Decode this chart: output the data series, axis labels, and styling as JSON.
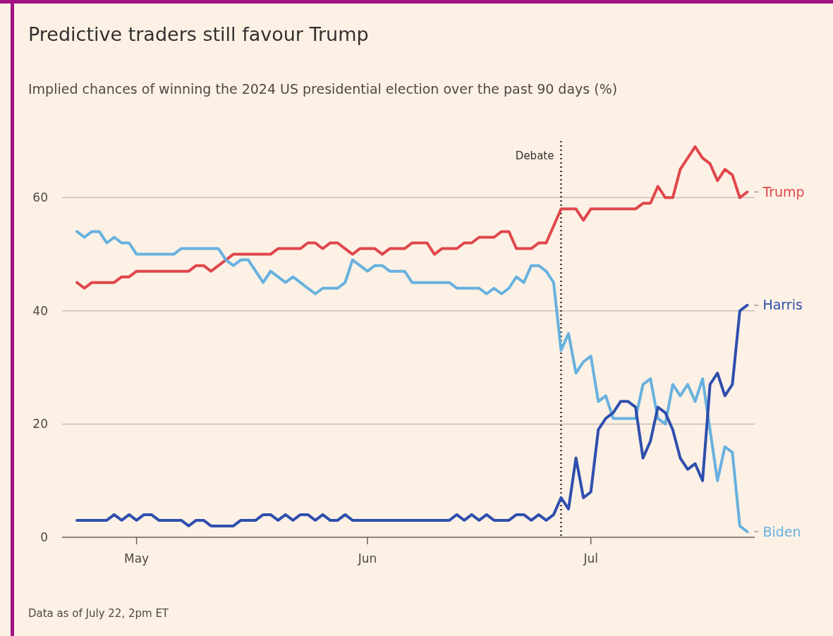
{
  "chart_data": {
    "type": "line",
    "title": "Predictive traders still favour Trump",
    "subtitle": "Implied chances of winning the 2024 US presidential election over the past 90 days (%)",
    "x": [
      "2024-04-23",
      "2024-04-24",
      "2024-04-25",
      "2024-04-26",
      "2024-04-27",
      "2024-04-28",
      "2024-04-29",
      "2024-04-30",
      "2024-05-01",
      "2024-05-02",
      "2024-05-03",
      "2024-05-04",
      "2024-05-05",
      "2024-05-06",
      "2024-05-07",
      "2024-05-08",
      "2024-05-09",
      "2024-05-10",
      "2024-05-11",
      "2024-05-12",
      "2024-05-13",
      "2024-05-14",
      "2024-05-15",
      "2024-05-16",
      "2024-05-17",
      "2024-05-18",
      "2024-05-19",
      "2024-05-20",
      "2024-05-21",
      "2024-05-22",
      "2024-05-23",
      "2024-05-24",
      "2024-05-25",
      "2024-05-26",
      "2024-05-27",
      "2024-05-28",
      "2024-05-29",
      "2024-05-30",
      "2024-05-31",
      "2024-06-01",
      "2024-06-02",
      "2024-06-03",
      "2024-06-04",
      "2024-06-05",
      "2024-06-06",
      "2024-06-07",
      "2024-06-08",
      "2024-06-09",
      "2024-06-10",
      "2024-06-11",
      "2024-06-12",
      "2024-06-13",
      "2024-06-14",
      "2024-06-15",
      "2024-06-16",
      "2024-06-17",
      "2024-06-18",
      "2024-06-19",
      "2024-06-20",
      "2024-06-21",
      "2024-06-22",
      "2024-06-23",
      "2024-06-24",
      "2024-06-25",
      "2024-06-26",
      "2024-06-27",
      "2024-06-28",
      "2024-06-29",
      "2024-06-30",
      "2024-07-01",
      "2024-07-02",
      "2024-07-03",
      "2024-07-04",
      "2024-07-05",
      "2024-07-06",
      "2024-07-07",
      "2024-07-08",
      "2024-07-09",
      "2024-07-10",
      "2024-07-11",
      "2024-07-12",
      "2024-07-13",
      "2024-07-14",
      "2024-07-15",
      "2024-07-16",
      "2024-07-17",
      "2024-07-18",
      "2024-07-19",
      "2024-07-20",
      "2024-07-21",
      "2024-07-22"
    ],
    "series": [
      {
        "name": "Trump",
        "color": "#e0474c",
        "values": [
          45,
          44,
          45,
          45,
          45,
          45,
          46,
          46,
          47,
          47,
          47,
          47,
          47,
          47,
          47,
          47,
          48,
          48,
          47,
          48,
          49,
          50,
          50,
          50,
          50,
          50,
          50,
          51,
          51,
          51,
          51,
          52,
          52,
          51,
          52,
          52,
          51,
          50,
          51,
          51,
          51,
          50,
          51,
          51,
          51,
          52,
          52,
          52,
          50,
          51,
          51,
          51,
          52,
          52,
          53,
          53,
          53,
          54,
          54,
          51,
          51,
          51,
          52,
          52,
          55,
          58,
          58,
          58,
          56,
          58,
          58,
          58,
          58,
          58,
          58,
          58,
          59,
          59,
          62,
          60,
          60,
          65,
          67,
          69,
          67,
          66,
          63,
          65,
          64,
          60,
          61
        ]
      },
      {
        "name": "Biden",
        "color": "#67b1de",
        "values": [
          54,
          53,
          54,
          54,
          52,
          53,
          52,
          52,
          50,
          50,
          50,
          50,
          50,
          50,
          51,
          51,
          51,
          51,
          51,
          51,
          49,
          48,
          49,
          49,
          47,
          45,
          47,
          46,
          45,
          46,
          45,
          44,
          43,
          44,
          44,
          44,
          45,
          49,
          48,
          47,
          48,
          48,
          47,
          47,
          47,
          45,
          45,
          45,
          45,
          45,
          45,
          44,
          44,
          44,
          44,
          43,
          44,
          43,
          44,
          46,
          45,
          48,
          48,
          47,
          45,
          33,
          36,
          29,
          31,
          32,
          24,
          25,
          21,
          21,
          21,
          21,
          27,
          28,
          21,
          20,
          27,
          25,
          27,
          24,
          28,
          19,
          10,
          16,
          15,
          2,
          1
        ]
      },
      {
        "name": "Harris",
        "color": "#2f4fad",
        "values": [
          3,
          3,
          3,
          3,
          3,
          4,
          3,
          4,
          3,
          4,
          4,
          3,
          3,
          3,
          3,
          2,
          3,
          3,
          2,
          2,
          2,
          2,
          3,
          3,
          3,
          4,
          4,
          3,
          4,
          3,
          4,
          4,
          3,
          4,
          3,
          3,
          4,
          3,
          3,
          3,
          3,
          3,
          3,
          3,
          3,
          3,
          3,
          3,
          3,
          3,
          3,
          4,
          3,
          4,
          3,
          4,
          3,
          3,
          3,
          4,
          4,
          3,
          4,
          3,
          4,
          7,
          5,
          14,
          7,
          8,
          19,
          21,
          22,
          24,
          24,
          23,
          14,
          17,
          23,
          22,
          19,
          14,
          12,
          13,
          10,
          27,
          29,
          25,
          27,
          40,
          41
        ]
      }
    ],
    "xlim": [
      "2024-04-21",
      "2024-07-23"
    ],
    "xticks": [
      {
        "value": "2024-05-01",
        "label": "May"
      },
      {
        "value": "2024-06-01",
        "label": "Jun"
      },
      {
        "value": "2024-07-01",
        "label": "Jul"
      }
    ],
    "ylim": [
      0,
      70
    ],
    "yticks": [
      0,
      20,
      40,
      60
    ],
    "grid": "y",
    "line_style": "solid",
    "ref_lines": [
      {
        "axis": "x",
        "value": "2024-06-27",
        "label": "Debate",
        "line_style": "dotted",
        "color": "#33302e"
      }
    ],
    "annotations": [
      "Data as of July 22, 2pm ET"
    ]
  }
}
